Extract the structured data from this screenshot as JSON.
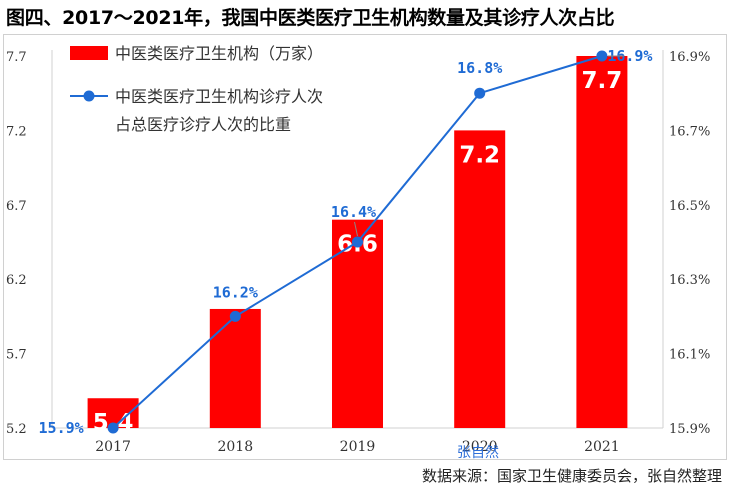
{
  "title": "图四、2017～2021年，我国中医类医疗卫生机构数量及其诊疗人次占比",
  "source": "数据来源：国家卫生健康委员会，张自然整理",
  "watermark": "张自然",
  "chart_data": {
    "type": "bar+line",
    "categories": [
      "2017",
      "2018",
      "2019",
      "2020",
      "2021"
    ],
    "series": [
      {
        "name": "中医类医疗卫生机构（万家）",
        "type": "bar",
        "axis": "left",
        "values": [
          5.4,
          6.0,
          6.6,
          7.2,
          7.7
        ],
        "value_labels": [
          "5.4",
          "",
          "6.6",
          "7.2",
          "7.7"
        ],
        "color": "#ff0000"
      },
      {
        "name": "中医类医疗卫生机构诊疗人次占总医疗诊疗人次的比重",
        "legend_lines": [
          "中医类医疗卫生机构诊疗人次",
          "占总医疗诊疗人次的比重"
        ],
        "type": "line",
        "axis": "right",
        "values": [
          15.9,
          16.2,
          16.4,
          16.8,
          16.9
        ],
        "value_labels": [
          "15.9%",
          "16.2%",
          "16.4%",
          "16.8%",
          "16.9%"
        ],
        "color": "#1f6bd4"
      }
    ],
    "y_left": {
      "ylim": [
        5.2,
        7.7
      ],
      "ticks": [
        "5.2",
        "5.7",
        "6.2",
        "6.7",
        "7.2",
        "7.7"
      ]
    },
    "y_right": {
      "ylim": [
        15.9,
        16.9
      ],
      "ticks": [
        "15.9%",
        "16.1%",
        "16.3%",
        "16.5%",
        "16.7%",
        "16.9%"
      ]
    },
    "grid": false,
    "legend": "top-left"
  }
}
